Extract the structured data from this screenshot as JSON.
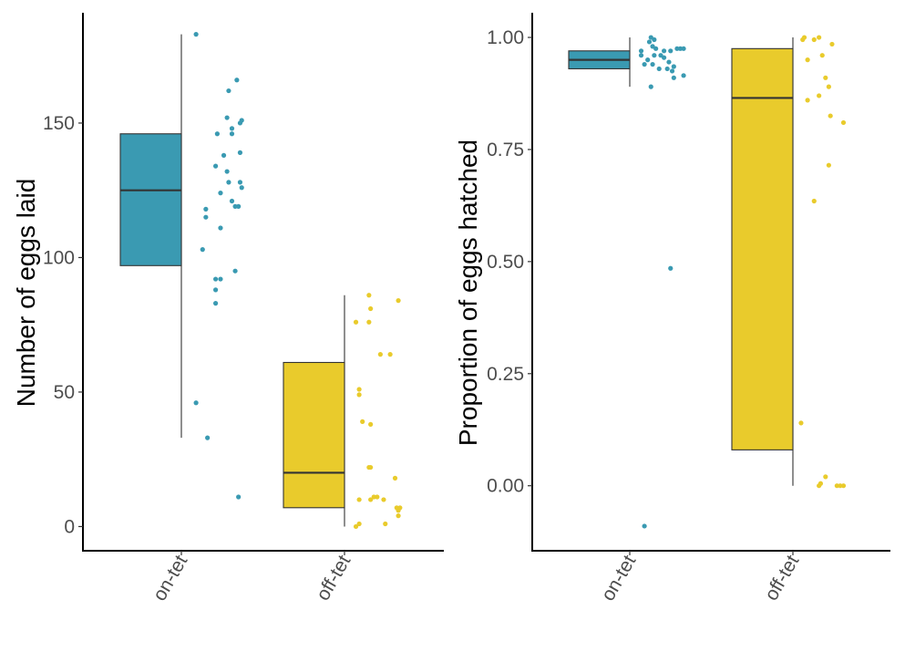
{
  "chart_data": [
    {
      "type": "box",
      "ylabel": "Number of eggs laid",
      "xlabel": "",
      "categories": [
        "on-tet",
        "off-tet"
      ],
      "ylim": [
        -9,
        191
      ],
      "yticks": [
        0,
        50,
        100,
        150
      ],
      "ytick_labels": [
        "0",
        "50",
        "100",
        "150"
      ],
      "colors": {
        "on-tet": "#3A9AB2",
        "off-tet": "#E9CB2C"
      },
      "boxes": [
        {
          "category": "on-tet",
          "q1": 97,
          "median": 125,
          "q3": 146,
          "whisker_low": 33,
          "whisker_high": 183
        },
        {
          "category": "off-tet",
          "q1": 7,
          "median": 20,
          "q3": 61,
          "whisker_low": 0,
          "whisker_high": 86
        }
      ],
      "points": [
        {
          "category": "on-tet",
          "offset": 0.09,
          "y": 46
        },
        {
          "category": "on-tet",
          "offset": 0.16,
          "y": 33
        },
        {
          "category": "on-tet",
          "offset": 0.13,
          "y": 103
        },
        {
          "category": "on-tet",
          "offset": 0.15,
          "y": 115
        },
        {
          "category": "on-tet",
          "offset": 0.15,
          "y": 118
        },
        {
          "category": "on-tet",
          "offset": 0.21,
          "y": 83
        },
        {
          "category": "on-tet",
          "offset": 0.21,
          "y": 88
        },
        {
          "category": "on-tet",
          "offset": 0.21,
          "y": 92
        },
        {
          "category": "on-tet",
          "offset": 0.24,
          "y": 92
        },
        {
          "category": "on-tet",
          "offset": 0.21,
          "y": 134
        },
        {
          "category": "on-tet",
          "offset": 0.22,
          "y": 146
        },
        {
          "category": "on-tet",
          "offset": 0.24,
          "y": 111
        },
        {
          "category": "on-tet",
          "offset": 0.24,
          "y": 124
        },
        {
          "category": "on-tet",
          "offset": 0.26,
          "y": 138
        },
        {
          "category": "on-tet",
          "offset": 0.28,
          "y": 152
        },
        {
          "category": "on-tet",
          "offset": 0.28,
          "y": 132
        },
        {
          "category": "on-tet",
          "offset": 0.29,
          "y": 128
        },
        {
          "category": "on-tet",
          "offset": 0.31,
          "y": 146
        },
        {
          "category": "on-tet",
          "offset": 0.31,
          "y": 148
        },
        {
          "category": "on-tet",
          "offset": 0.29,
          "y": 162
        },
        {
          "category": "on-tet",
          "offset": 0.34,
          "y": 166
        },
        {
          "category": "on-tet",
          "offset": 0.33,
          "y": 119
        },
        {
          "category": "on-tet",
          "offset": 0.35,
          "y": 119
        },
        {
          "category": "on-tet",
          "offset": 0.36,
          "y": 128
        },
        {
          "category": "on-tet",
          "offset": 0.37,
          "y": 126
        },
        {
          "category": "on-tet",
          "offset": 0.36,
          "y": 139
        },
        {
          "category": "on-tet",
          "offset": 0.36,
          "y": 150
        },
        {
          "category": "on-tet",
          "offset": 0.37,
          "y": 151
        },
        {
          "category": "on-tet",
          "offset": 0.31,
          "y": 121
        },
        {
          "category": "on-tet",
          "offset": 0.33,
          "y": 95
        },
        {
          "category": "on-tet",
          "offset": 0.35,
          "y": 11
        },
        {
          "category": "on-tet",
          "offset": 0.09,
          "y": 183
        },
        {
          "category": "off-tet",
          "offset": 0.07,
          "y": 0
        },
        {
          "category": "off-tet",
          "offset": 0.09,
          "y": 1
        },
        {
          "category": "off-tet",
          "offset": 0.09,
          "y": 10
        },
        {
          "category": "off-tet",
          "offset": 0.16,
          "y": 10
        },
        {
          "category": "off-tet",
          "offset": 0.18,
          "y": 11
        },
        {
          "category": "off-tet",
          "offset": 0.2,
          "y": 11
        },
        {
          "category": "off-tet",
          "offset": 0.24,
          "y": 10
        },
        {
          "category": "off-tet",
          "offset": 0.15,
          "y": 22
        },
        {
          "category": "off-tet",
          "offset": 0.16,
          "y": 22
        },
        {
          "category": "off-tet",
          "offset": 0.11,
          "y": 39
        },
        {
          "category": "off-tet",
          "offset": 0.16,
          "y": 38
        },
        {
          "category": "off-tet",
          "offset": 0.09,
          "y": 49
        },
        {
          "category": "off-tet",
          "offset": 0.09,
          "y": 51
        },
        {
          "category": "off-tet",
          "offset": 0.07,
          "y": 76
        },
        {
          "category": "off-tet",
          "offset": 0.15,
          "y": 76
        },
        {
          "category": "off-tet",
          "offset": 0.16,
          "y": 81
        },
        {
          "category": "off-tet",
          "offset": 0.15,
          "y": 86
        },
        {
          "category": "off-tet",
          "offset": 0.22,
          "y": 64
        },
        {
          "category": "off-tet",
          "offset": 0.28,
          "y": 64
        },
        {
          "category": "off-tet",
          "offset": 0.33,
          "y": 84
        },
        {
          "category": "off-tet",
          "offset": 0.31,
          "y": 18
        },
        {
          "category": "off-tet",
          "offset": 0.32,
          "y": 7
        },
        {
          "category": "off-tet",
          "offset": 0.33,
          "y": 6
        },
        {
          "category": "off-tet",
          "offset": 0.34,
          "y": 7
        },
        {
          "category": "off-tet",
          "offset": 0.33,
          "y": 4
        },
        {
          "category": "off-tet",
          "offset": 0.25,
          "y": 1
        }
      ]
    },
    {
      "type": "box",
      "ylabel": "Proportion of eggs hatched",
      "xlabel": "",
      "categories": [
        "on-tet",
        "off-tet"
      ],
      "ylim": [
        -0.145,
        1.055
      ],
      "yticks": [
        0,
        0.25,
        0.5,
        0.75,
        1
      ],
      "ytick_labels": [
        "0.00",
        "0.25",
        "0.50",
        "0.75",
        "1.00"
      ],
      "colors": {
        "on-tet": "#3A9AB2",
        "off-tet": "#E9CB2C"
      },
      "boxes": [
        {
          "category": "on-tet",
          "q1": 0.93,
          "median": 0.95,
          "q3": 0.97,
          "whisker_low": 0.89,
          "whisker_high": 1.0
        },
        {
          "category": "off-tet",
          "q1": 0.08,
          "median": 0.865,
          "q3": 0.975,
          "whisker_low": 0.0,
          "whisker_high": 1.0
        }
      ],
      "points": [
        {
          "category": "on-tet",
          "offset": 0.09,
          "y": -0.09
        },
        {
          "category": "on-tet",
          "offset": 0.25,
          "y": 0.485
        },
        {
          "category": "on-tet",
          "offset": 0.13,
          "y": 0.89
        },
        {
          "category": "on-tet",
          "offset": 0.07,
          "y": 0.96
        },
        {
          "category": "on-tet",
          "offset": 0.07,
          "y": 0.97
        },
        {
          "category": "on-tet",
          "offset": 0.09,
          "y": 0.94
        },
        {
          "category": "on-tet",
          "offset": 0.11,
          "y": 0.95
        },
        {
          "category": "on-tet",
          "offset": 0.12,
          "y": 0.99
        },
        {
          "category": "on-tet",
          "offset": 0.13,
          "y": 1.0
        },
        {
          "category": "on-tet",
          "offset": 0.14,
          "y": 0.98
        },
        {
          "category": "on-tet",
          "offset": 0.15,
          "y": 0.995
        },
        {
          "category": "on-tet",
          "offset": 0.16,
          "y": 0.975
        },
        {
          "category": "on-tet",
          "offset": 0.14,
          "y": 0.94
        },
        {
          "category": "on-tet",
          "offset": 0.15,
          "y": 0.96
        },
        {
          "category": "on-tet",
          "offset": 0.18,
          "y": 0.93
        },
        {
          "category": "on-tet",
          "offset": 0.19,
          "y": 0.96
        },
        {
          "category": "on-tet",
          "offset": 0.21,
          "y": 0.97
        },
        {
          "category": "on-tet",
          "offset": 0.21,
          "y": 0.955
        },
        {
          "category": "on-tet",
          "offset": 0.23,
          "y": 0.93
        },
        {
          "category": "on-tet",
          "offset": 0.24,
          "y": 0.945
        },
        {
          "category": "on-tet",
          "offset": 0.25,
          "y": 0.97
        },
        {
          "category": "on-tet",
          "offset": 0.26,
          "y": 0.925
        },
        {
          "category": "on-tet",
          "offset": 0.27,
          "y": 0.935
        },
        {
          "category": "on-tet",
          "offset": 0.27,
          "y": 0.91
        },
        {
          "category": "on-tet",
          "offset": 0.31,
          "y": 0.975
        },
        {
          "category": "on-tet",
          "offset": 0.33,
          "y": 0.975
        },
        {
          "category": "on-tet",
          "offset": 0.33,
          "y": 0.915
        },
        {
          "category": "on-tet",
          "offset": 0.29,
          "y": 0.975
        },
        {
          "category": "off-tet",
          "offset": 0.05,
          "y": 0.14
        },
        {
          "category": "off-tet",
          "offset": 0.07,
          "y": 1.0
        },
        {
          "category": "off-tet",
          "offset": 0.06,
          "y": 0.995
        },
        {
          "category": "off-tet",
          "offset": 0.09,
          "y": 0.95
        },
        {
          "category": "off-tet",
          "offset": 0.09,
          "y": 0.86
        },
        {
          "category": "off-tet",
          "offset": 0.13,
          "y": 0.635
        },
        {
          "category": "off-tet",
          "offset": 0.13,
          "y": 0.995
        },
        {
          "category": "off-tet",
          "offset": 0.16,
          "y": 1.0
        },
        {
          "category": "off-tet",
          "offset": 0.16,
          "y": 0.87
        },
        {
          "category": "off-tet",
          "offset": 0.18,
          "y": 0.96
        },
        {
          "category": "off-tet",
          "offset": 0.2,
          "y": 0.91
        },
        {
          "category": "off-tet",
          "offset": 0.22,
          "y": 0.89
        },
        {
          "category": "off-tet",
          "offset": 0.24,
          "y": 0.985
        },
        {
          "category": "off-tet",
          "offset": 0.23,
          "y": 0.825
        },
        {
          "category": "off-tet",
          "offset": 0.31,
          "y": 0.81
        },
        {
          "category": "off-tet",
          "offset": 0.22,
          "y": 0.715
        },
        {
          "category": "off-tet",
          "offset": 0.16,
          "y": 0.0
        },
        {
          "category": "off-tet",
          "offset": 0.17,
          "y": 0.005
        },
        {
          "category": "off-tet",
          "offset": 0.2,
          "y": 0.02
        },
        {
          "category": "off-tet",
          "offset": 0.27,
          "y": 0.0
        },
        {
          "category": "off-tet",
          "offset": 0.29,
          "y": 0.0
        },
        {
          "category": "off-tet",
          "offset": 0.31,
          "y": 0.0
        }
      ]
    }
  ]
}
